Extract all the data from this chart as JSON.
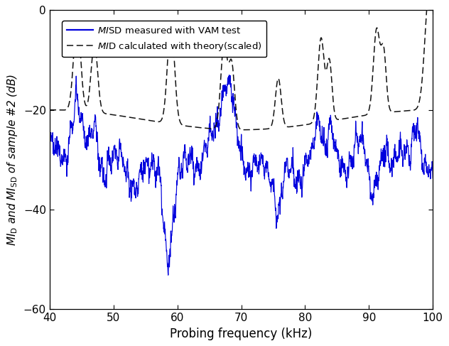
{
  "xlabel": "Probing frequency (kHz)",
  "xlim": [
    40,
    100
  ],
  "ylim": [
    -60,
    0
  ],
  "xticks": [
    40,
    50,
    60,
    70,
    80,
    90,
    100
  ],
  "yticks": [
    0,
    -20,
    -40,
    -60
  ],
  "blue_color": "#0000DD",
  "black_color": "#111111",
  "figsize": [
    6.32,
    4.87
  ],
  "dpi": 100,
  "legend_blue": "$MI_{\\mathrm{SD}}$ measured with VAM test",
  "legend_black": "$MI_{\\mathrm{D}}$ calculated with theory(scaled)"
}
